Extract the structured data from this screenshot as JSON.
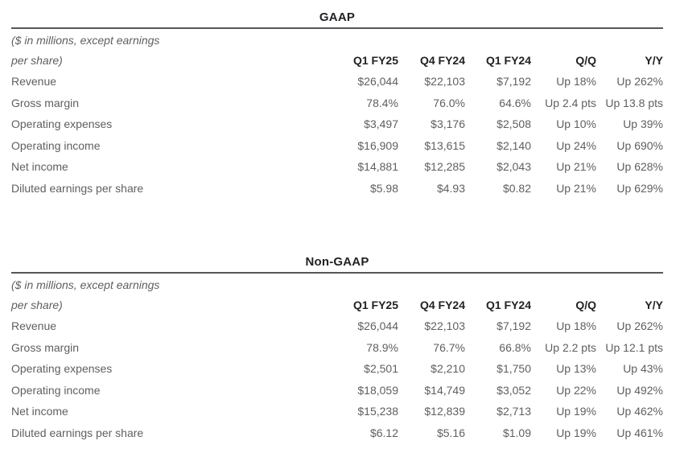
{
  "colors": {
    "background": "#ffffff",
    "heading_text": "#212226",
    "body_text": "#5e5f61",
    "rule": "#56575b"
  },
  "tables": [
    {
      "title": "GAAP",
      "note_line1": "($ in millions, except earnings",
      "note_line2": "per share)",
      "columns": [
        "Q1 FY25",
        "Q4 FY24",
        "Q1 FY24",
        "Q/Q",
        "Y/Y"
      ],
      "rows": [
        {
          "label": "Revenue",
          "values": [
            "$26,044",
            "$22,103",
            "$7,192",
            "Up 18%",
            "Up 262%"
          ]
        },
        {
          "label": "Gross margin",
          "values": [
            "78.4%",
            "76.0%",
            "64.6%",
            "Up 2.4 pts",
            "Up 13.8 pts"
          ]
        },
        {
          "label": "Operating expenses",
          "values": [
            "$3,497",
            "$3,176",
            "$2,508",
            "Up 10%",
            "Up 39%"
          ]
        },
        {
          "label": "Operating income",
          "values": [
            "$16,909",
            "$13,615",
            "$2,140",
            "Up 24%",
            "Up 690%"
          ]
        },
        {
          "label": "Net income",
          "values": [
            "$14,881",
            "$12,285",
            "$2,043",
            "Up 21%",
            "Up 628%"
          ]
        },
        {
          "label": "Diluted earnings per share",
          "values": [
            "$5.98",
            "$4.93",
            "$0.82",
            "Up 21%",
            "Up 629%"
          ]
        }
      ]
    },
    {
      "title": "Non-GAAP",
      "note_line1": "($ in millions, except earnings",
      "note_line2": "per share)",
      "columns": [
        "Q1 FY25",
        "Q4 FY24",
        "Q1 FY24",
        "Q/Q",
        "Y/Y"
      ],
      "rows": [
        {
          "label": "Revenue",
          "values": [
            "$26,044",
            "$22,103",
            "$7,192",
            "Up 18%",
            "Up 262%"
          ]
        },
        {
          "label": "Gross margin",
          "values": [
            "78.9%",
            "76.7%",
            "66.8%",
            "Up 2.2 pts",
            "Up 12.1 pts"
          ]
        },
        {
          "label": "Operating expenses",
          "values": [
            "$2,501",
            "$2,210",
            "$1,750",
            "Up 13%",
            "Up 43%"
          ]
        },
        {
          "label": "Operating income",
          "values": [
            "$18,059",
            "$14,749",
            "$3,052",
            "Up 22%",
            "Up 492%"
          ]
        },
        {
          "label": "Net income",
          "values": [
            "$15,238",
            "$12,839",
            "$2,713",
            "Up 19%",
            "Up 462%"
          ]
        },
        {
          "label": "Diluted earnings per share",
          "values": [
            "$6.12",
            "$5.16",
            "$1.09",
            "Up 19%",
            "Up 461%"
          ]
        }
      ]
    }
  ]
}
